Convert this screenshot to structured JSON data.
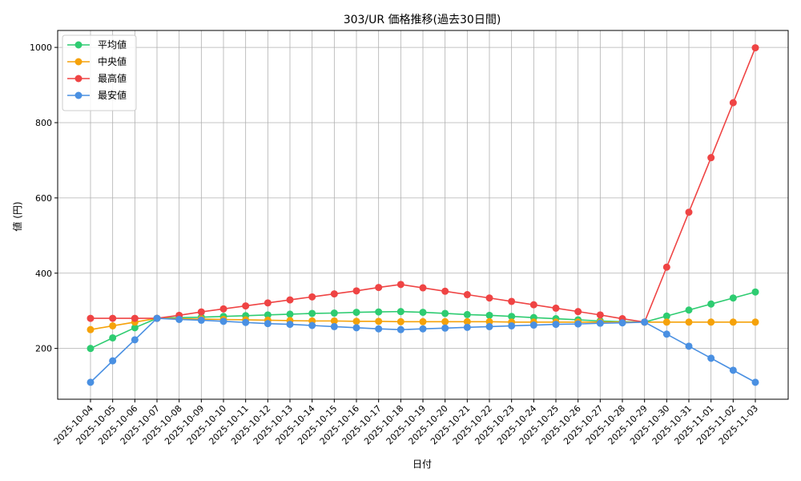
{
  "chart_data": {
    "type": "line",
    "title": "303/UR 価格推移(過去30日間)",
    "xlabel": "日付",
    "ylabel": "値 (円)",
    "ylim": [
      65,
      1045
    ],
    "yticks": [
      200,
      400,
      600,
      800,
      1000
    ],
    "grid": true,
    "legend_position": "top-left",
    "categories": [
      "2025-10-04",
      "2025-10-05",
      "2025-10-06",
      "2025-10-07",
      "2025-10-08",
      "2025-10-09",
      "2025-10-10",
      "2025-10-11",
      "2025-10-12",
      "2025-10-13",
      "2025-10-14",
      "2025-10-15",
      "2025-10-16",
      "2025-10-17",
      "2025-10-18",
      "2025-10-19",
      "2025-10-20",
      "2025-10-21",
      "2025-10-22",
      "2025-10-23",
      "2025-10-24",
      "2025-10-25",
      "2025-10-26",
      "2025-10-27",
      "2025-10-28",
      "2025-10-29",
      "2025-10-30",
      "2025-10-31",
      "2025-11-01",
      "2025-11-02",
      "2025-11-03"
    ],
    "series": [
      {
        "name": "平均値",
        "color": "#2ecc71",
        "values": [
          200,
          228,
          255,
          280,
          282,
          283,
          285,
          287,
          289,
          291,
          293,
          294,
          296,
          297,
          298,
          296,
          293,
          290,
          288,
          285,
          282,
          279,
          276,
          273,
          271,
          270,
          286,
          302,
          318,
          334,
          350
        ]
      },
      {
        "name": "中央値",
        "color": "#f5a20a",
        "values": [
          250,
          260,
          270,
          280,
          279,
          278,
          277,
          276,
          275,
          274,
          273,
          273,
          272,
          272,
          271,
          271,
          271,
          271,
          271,
          270,
          270,
          270,
          270,
          270,
          270,
          270,
          270,
          270,
          270,
          270,
          270
        ]
      },
      {
        "name": "最高値",
        "color": "#ef4444",
        "values": [
          280,
          280,
          280,
          280,
          288,
          297,
          305,
          313,
          321,
          329,
          337,
          345,
          353,
          362,
          370,
          361,
          352,
          343,
          334,
          325,
          316,
          307,
          298,
          289,
          279,
          270,
          416,
          562,
          707,
          853,
          999
        ]
      },
      {
        "name": "最安値",
        "color": "#4a90e2",
        "values": [
          110,
          167,
          223,
          280,
          277,
          275,
          272,
          269,
          266,
          264,
          261,
          258,
          255,
          252,
          250,
          252,
          254,
          256,
          258,
          260,
          262,
          264,
          265,
          267,
          268,
          270,
          238,
          206,
          174,
          142,
          110
        ]
      }
    ]
  }
}
